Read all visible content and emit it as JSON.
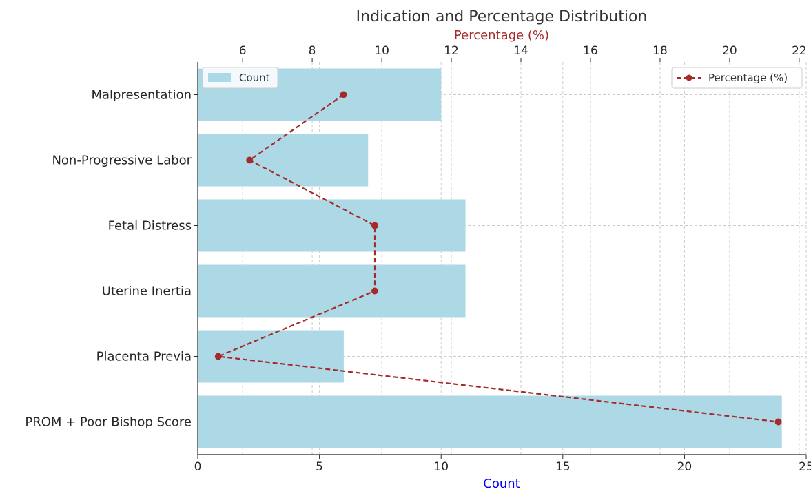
{
  "chart_data": {
    "type": "bar",
    "orientation": "horizontal",
    "title": "Indication and Percentage Distribution",
    "categories": [
      "Malpresentation",
      "Non-Progressive Labor",
      "Fetal Distress",
      "Uterine Inertia",
      "Placenta Previa",
      "PROM + Poor Bishop Score"
    ],
    "series": [
      {
        "name": "Count",
        "kind": "bar",
        "axis": "bottom",
        "color": "#add8e6",
        "values": [
          10,
          7,
          11,
          11,
          6,
          24
        ]
      },
      {
        "name": "Percentage (%)",
        "kind": "line",
        "axis": "top",
        "color": "#a52a2a",
        "style": "dashed",
        "marker": "circle",
        "values": [
          8.9,
          6.2,
          9.8,
          9.8,
          5.3,
          21.4
        ]
      }
    ],
    "xlabel": "Count",
    "xlabel_color": "#0000ff",
    "xlim": [
      0,
      25
    ],
    "xticks": [
      "0",
      "5",
      "10",
      "15",
      "20",
      "25"
    ],
    "x2label": "Percentage (%)",
    "x2label_color": "#a52a2a",
    "x2lim": [
      4.71,
      22.2
    ],
    "x2ticks": [
      "6",
      "8",
      "10",
      "12",
      "14",
      "16",
      "18",
      "20",
      "22"
    ],
    "grid": true,
    "legends": [
      {
        "position": "top-left",
        "label": "Count"
      },
      {
        "position": "top-right",
        "label": "Percentage (%)"
      }
    ]
  }
}
